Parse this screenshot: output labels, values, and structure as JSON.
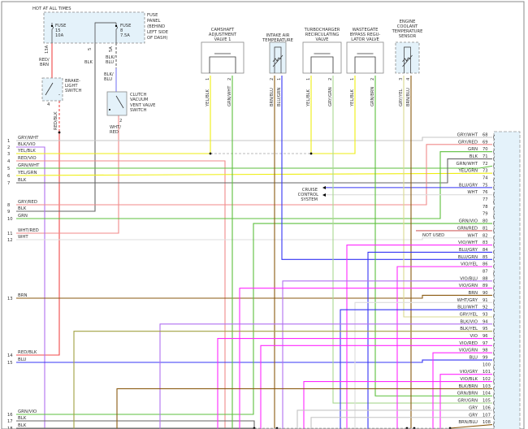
{
  "header": {
    "hot_label": "HOT AT ALL TIMES"
  },
  "fuse_panel": {
    "label": [
      "FUSE",
      "PANEL",
      "(BEHIND",
      "LEFT SIDE",
      "OF DASH)"
    ],
    "fuse15": [
      "FUSE",
      "15",
      "10A"
    ],
    "fuse8": [
      "FUSE",
      "8",
      "7.5A"
    ],
    "pins": [
      "13A",
      "5",
      "5A"
    ],
    "wires": {
      "red_brn": [
        "RED/",
        "BRN"
      ],
      "blk": "BLK",
      "blk_blu_a": [
        "BLK/",
        "BLU"
      ],
      "blk_blu_b": [
        "BLK/",
        "BLU"
      ]
    }
  },
  "brake_switch": {
    "label": [
      "BRAKE-",
      "LIGHT",
      "SWITCH"
    ],
    "wire": "RED/BLK",
    "pin": "4"
  },
  "clutch_switch": {
    "label": [
      "CLUTCH",
      "VACUUM",
      "VENT VALVE",
      "SWITCH"
    ],
    "wire": [
      "WHT/",
      "RED"
    ],
    "pin": "2"
  },
  "components": [
    {
      "name": [
        "CAMSHAFT",
        "ADJUSTMENT",
        "VALVE 1"
      ],
      "wires": [
        "YEL/BLK",
        "GRN/WHT"
      ],
      "pins": [
        "1",
        "2"
      ]
    },
    {
      "name": [
        "INTAKE AIR",
        "TEMPERATURE"
      ],
      "wires": [
        "BRN/BLU",
        "BLU/GRN"
      ],
      "pins": [
        "2",
        "1"
      ]
    },
    {
      "name": [
        "TURBOCHARGER",
        "RECIRCULATING",
        "VALVE"
      ],
      "wires": [
        "YEL/BLK",
        "GRY/GRN"
      ],
      "pins": [
        "1",
        "2"
      ]
    },
    {
      "name": [
        "WASTEGATE",
        "BYPASS REGU-",
        "LATOR VALVE"
      ],
      "wires": [
        "YEL/BLK",
        "GRN/BRN"
      ],
      "pins": [
        "1",
        "2"
      ]
    },
    {
      "name": [
        "ENGINE",
        "COOLANT",
        "TEMPERATURE",
        "SENSOR"
      ],
      "wires": [
        "GRY/YEL",
        "BRN/BLU"
      ],
      "pins": [
        "3",
        "4"
      ]
    }
  ],
  "cruise": {
    "label": [
      "CRUISE",
      "CONTROL",
      "SYSTEM"
    ]
  },
  "not_used": "NOT USED",
  "left_pins": [
    {
      "pin": "1",
      "wire": "GRY/WHT"
    },
    {
      "pin": "2",
      "wire": "BLK/VIO"
    },
    {
      "pin": "3",
      "wire": "YEL/BLK"
    },
    {
      "pin": "4",
      "wire": "RED/VIO"
    },
    {
      "pin": "5",
      "wire": "GRN/WHT"
    },
    {
      "pin": "6",
      "wire": "YEL/GRN"
    },
    {
      "pin": "7",
      "wire": "BLK"
    },
    {
      "pin": "8",
      "wire": "GRY/RED"
    },
    {
      "pin": "9",
      "wire": "BLK"
    },
    {
      "pin": "10",
      "wire": "GRN"
    },
    {
      "pin": "11",
      "wire": "WHT/RED"
    },
    {
      "pin": "12",
      "wire": "WHT"
    },
    {
      "pin": "13",
      "wire": "BRN"
    },
    {
      "pin": "14",
      "wire": "RED/BLK"
    },
    {
      "pin": "15",
      "wire": "BLU"
    },
    {
      "pin": "16",
      "wire": "GRN/VIO"
    },
    {
      "pin": "17",
      "wire": "BLK"
    },
    {
      "pin": "18",
      "wire": "BLK"
    }
  ],
  "right_pins": [
    {
      "pin": "68",
      "wire": "GRY/WHT"
    },
    {
      "pin": "69",
      "wire": "GRY/RED"
    },
    {
      "pin": "70",
      "wire": "GRN"
    },
    {
      "pin": "71",
      "wire": "BLK"
    },
    {
      "pin": "72",
      "wire": "GRN/WHT"
    },
    {
      "pin": "73",
      "wire": "YEL/GRN"
    },
    {
      "pin": "74",
      "wire": ""
    },
    {
      "pin": "75",
      "wire": "BLU/GRY"
    },
    {
      "pin": "76",
      "wire": "WHT"
    },
    {
      "pin": "77",
      "wire": ""
    },
    {
      "pin": "78",
      "wire": ""
    },
    {
      "pin": "79",
      "wire": ""
    },
    {
      "pin": "80",
      "wire": "GRN/VIO"
    },
    {
      "pin": "81",
      "wire": "GRN/RED"
    },
    {
      "pin": "82",
      "wire": "WHT"
    },
    {
      "pin": "83",
      "wire": "VIO/WHT"
    },
    {
      "pin": "84",
      "wire": "BLU/GRY"
    },
    {
      "pin": "85",
      "wire": "BLU/GRN"
    },
    {
      "pin": "86",
      "wire": "VIO/YEL"
    },
    {
      "pin": "87",
      "wire": ""
    },
    {
      "pin": "88",
      "wire": "VIO/BLU"
    },
    {
      "pin": "89",
      "wire": "VIO/GRN"
    },
    {
      "pin": "90",
      "wire": "BRN"
    },
    {
      "pin": "91",
      "wire": "WHT/GRY"
    },
    {
      "pin": "92",
      "wire": "BLU/WHT"
    },
    {
      "pin": "93",
      "wire": "GRY/YEL"
    },
    {
      "pin": "94",
      "wire": "BLK/VIO"
    },
    {
      "pin": "95",
      "wire": "BLK/YEL"
    },
    {
      "pin": "96",
      "wire": "VIO"
    },
    {
      "pin": "97",
      "wire": "VIO/RED"
    },
    {
      "pin": "98",
      "wire": "VIO/GRN"
    },
    {
      "pin": "99",
      "wire": "BLU"
    },
    {
      "pin": "100",
      "wire": ""
    },
    {
      "pin": "101",
      "wire": "VIO/GRY"
    },
    {
      "pin": "102",
      "wire": "VIO/BLK"
    },
    {
      "pin": "103",
      "wire": "BLK/BRN"
    },
    {
      "pin": "104",
      "wire": "GRN/BRN"
    },
    {
      "pin": "105",
      "wire": "GRY/GRN"
    },
    {
      "pin": "106",
      "wire": "GRY"
    },
    {
      "pin": "107",
      "wire": "GRY"
    },
    {
      "pin": "108",
      "wire": "BRN/BLU"
    }
  ],
  "colors": {
    "GRY": "#c4c4c4",
    "WHT": "#dcdcdc",
    "YEL": "#eeee10",
    "GRN": "#5cbf3c",
    "LGRN": "#a8d890",
    "RED": "#f04848",
    "PNK": "#f08a8a",
    "VIO": "#ff28ff",
    "LVIO": "#b070f0",
    "BLU": "#3434f4",
    "LBLU": "#7a7af4",
    "BRN": "#8a5a10",
    "BLK": "#666666",
    "OLV": "#a0a040",
    "box_fill": "#e4f2fa"
  }
}
